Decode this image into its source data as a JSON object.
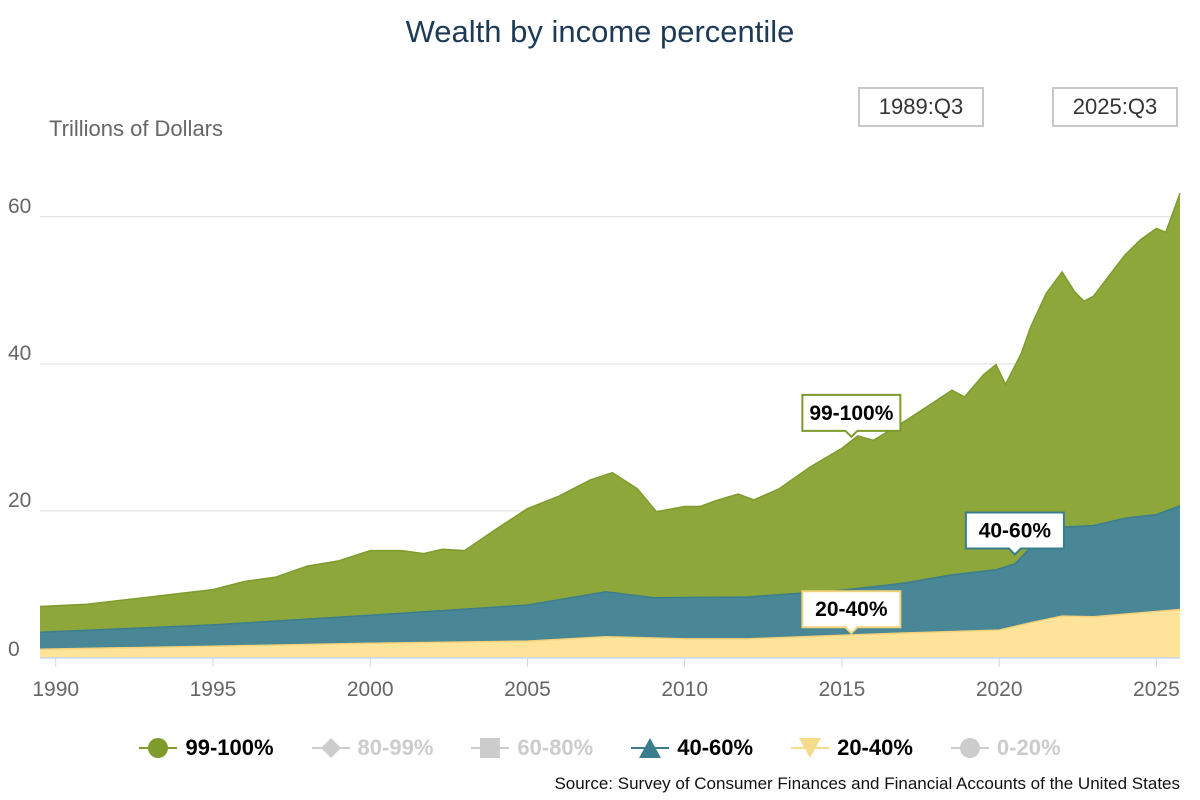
{
  "title": "Wealth by income percentile",
  "range": {
    "start": "1989:Q3",
    "end": "2025:Q3"
  },
  "unit_label": "Trillions of Dollars",
  "source": "Source: Survey of Consumer Finances and Financial Accounts of the United States",
  "colors": {
    "p99_100": "#8ea73a",
    "p40_60": "#4a8796",
    "p20_40": "#fde49a",
    "disabled": "#cccccc",
    "grid": "#dddddd"
  },
  "legend": [
    {
      "label": "99-100%",
      "symbol": "circle",
      "color": "#7e9b2c",
      "active": true
    },
    {
      "label": "80-99%",
      "symbol": "diamond",
      "color": "#cccccc",
      "active": false
    },
    {
      "label": "60-80%",
      "symbol": "square",
      "color": "#cccccc",
      "active": false
    },
    {
      "label": "40-60%",
      "symbol": "triangle",
      "color": "#3a7d8c",
      "active": true
    },
    {
      "label": "20-40%",
      "symbol": "triangle-down",
      "color": "#f5dc8a",
      "active": true
    },
    {
      "label": "0-20%",
      "symbol": "circle",
      "color": "#cccccc",
      "active": false
    }
  ],
  "chart_data": {
    "type": "area",
    "stacked": true,
    "xlim": [
      1989.5,
      2025.75
    ],
    "ylim": [
      0,
      65
    ],
    "yticks": [
      0,
      20,
      40,
      60
    ],
    "xticks": [
      1990,
      1995,
      2000,
      2005,
      2010,
      2015,
      2020,
      2025
    ],
    "grid": true,
    "series_layers": [
      {
        "name": "20-40%",
        "points": [
          [
            1989.5,
            1.2
          ],
          [
            1995,
            1.6
          ],
          [
            2000,
            2.0
          ],
          [
            2005,
            2.3
          ],
          [
            2007.5,
            2.9
          ],
          [
            2010,
            2.6
          ],
          [
            2012,
            2.6
          ],
          [
            2015,
            3.1
          ],
          [
            2017,
            3.4
          ],
          [
            2020,
            3.8
          ],
          [
            2021,
            4.8
          ],
          [
            2022,
            5.7
          ],
          [
            2023,
            5.6
          ],
          [
            2025.75,
            6.6
          ]
        ]
      },
      {
        "name": "40-60%",
        "points": [
          [
            1989.5,
            3.5
          ],
          [
            1995,
            4.5
          ],
          [
            2000,
            5.8
          ],
          [
            2005,
            7.2
          ],
          [
            2007.5,
            9.0
          ],
          [
            2009,
            8.2
          ],
          [
            2012,
            8.3
          ],
          [
            2015,
            9.2
          ],
          [
            2017,
            10.2
          ],
          [
            2018.5,
            11.3
          ],
          [
            2019.9,
            12.0
          ],
          [
            2020.5,
            12.8
          ],
          [
            2021,
            15.0
          ],
          [
            2022,
            17.8
          ],
          [
            2023,
            18.0
          ],
          [
            2024,
            19.0
          ],
          [
            2025,
            19.5
          ],
          [
            2025.75,
            20.7
          ]
        ]
      },
      {
        "name": "99-100%",
        "points": [
          [
            1989.5,
            7.0
          ],
          [
            1990,
            7.1
          ],
          [
            1991,
            7.3
          ],
          [
            1992,
            7.8
          ],
          [
            1993,
            8.3
          ],
          [
            1994,
            8.8
          ],
          [
            1995,
            9.3
          ],
          [
            1996,
            10.4
          ],
          [
            1997,
            11.0
          ],
          [
            1998,
            12.5
          ],
          [
            1999,
            13.2
          ],
          [
            2000,
            14.6
          ],
          [
            2001,
            14.6
          ],
          [
            2001.7,
            14.2
          ],
          [
            2002.3,
            14.8
          ],
          [
            2003,
            14.6
          ],
          [
            2004,
            17.5
          ],
          [
            2005,
            20.3
          ],
          [
            2006,
            22.0
          ],
          [
            2007,
            24.2
          ],
          [
            2007.7,
            25.2
          ],
          [
            2008.5,
            23.0
          ],
          [
            2009.1,
            19.9
          ],
          [
            2010,
            20.6
          ],
          [
            2010.5,
            20.6
          ],
          [
            2011,
            21.4
          ],
          [
            2011.7,
            22.3
          ],
          [
            2012.2,
            21.5
          ],
          [
            2013,
            23.0
          ],
          [
            2014,
            26.0
          ],
          [
            2015,
            28.5
          ],
          [
            2015.5,
            30.2
          ],
          [
            2016,
            29.6
          ],
          [
            2017,
            32.2
          ],
          [
            2018,
            35.0
          ],
          [
            2018.5,
            36.4
          ],
          [
            2018.9,
            35.5
          ],
          [
            2019.5,
            38.5
          ],
          [
            2019.9,
            39.9
          ],
          [
            2020.2,
            37.2
          ],
          [
            2020.7,
            41.4
          ],
          [
            2021,
            45.0
          ],
          [
            2021.5,
            49.6
          ],
          [
            2022,
            52.5
          ],
          [
            2022.4,
            49.8
          ],
          [
            2022.7,
            48.5
          ],
          [
            2023,
            49.2
          ],
          [
            2023.5,
            52.0
          ],
          [
            2024,
            54.8
          ],
          [
            2024.5,
            56.9
          ],
          [
            2025,
            58.4
          ],
          [
            2025.3,
            57.9
          ],
          [
            2025.75,
            63.2
          ]
        ]
      }
    ],
    "annotations": [
      {
        "label": "99-100%",
        "x": 2015.3,
        "y": 29.8
      },
      {
        "label": "40-60%",
        "x": 2020.5,
        "y": 13.8
      },
      {
        "label": "20-40%",
        "x": 2015.3,
        "y": 3.1
      }
    ]
  }
}
